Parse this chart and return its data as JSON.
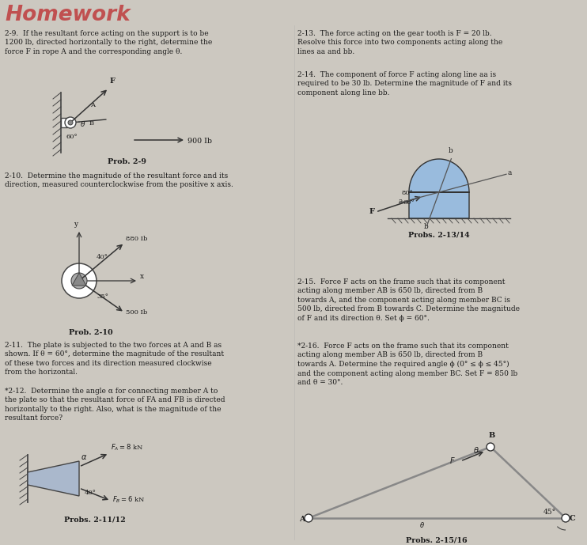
{
  "title": "Homework",
  "bg_color": "#ccc8c0",
  "title_color": "#c05050",
  "text_color": "#1a1a1a",
  "fs_body": 6.5,
  "fs_label": 6.8,
  "fs_title": 19,
  "col_split": 372,
  "p29_text": "2-9.  If the resultant force acting on the support is to be\n1200 lb, directed horizontally to the right, determine the\nforce F in rope A and the corresponding angle θ.",
  "p210_text": "2-10.  Determine the magnitude of the resultant force and its\ndirection, measured counterclockwise from the positive x axis.",
  "p211_text": "2-11.  The plate is subjected to the two forces at A and B as\nshown. If θ = 60°, determine the magnitude of the resultant\nof these two forces and its direction measured clockwise\nfrom the horizontal.",
  "p212_text": "*2-12.  Determine the angle α for connecting member A to\nthe plate so that the resultant force of FA and FB is directed\nhorizontally to the right. Also, what is the magnitude of the\nresultant force?",
  "p213_text": "2-13.  The force acting on the gear tooth is F = 20 lb.\nResolve this force into two components acting along the\nlines aa and bb.",
  "p214_text": "2-14.  The component of force F acting along line aa is\nrequired to be 30 lb. Determine the magnitude of F and its\ncomponent along line bb.",
  "p215_text": "2-15.  Force F acts on the frame such that its component\nacting along member AB is 650 lb, directed from B\ntowards A, and the component acting along member BC is\n500 lb, directed from B towards C. Determine the magnitude\nof F and its direction θ. Set ϕ = 60°.",
  "p216_text": "*2-16.  Force F acts on the frame such that its component\nacting along member AB is 650 lb, directed from B\ntowards A. Determine the required angle ϕ (0° ≤ ϕ ≤ 45°)\nand the component acting along member BC. Set F = 850 lb\nand θ = 30°.",
  "prob29_lbl": "Prob. 2-9",
  "prob210_lbl": "Prob. 2-10",
  "prob2_1112_lbl": "Probs. 2-11/12",
  "prob2_1314_lbl": "Probs. 2-13/14",
  "prob2_1516_lbl": "Probs. 2-15/16",
  "gear_color": "#99bbdd",
  "plate_color": "#aab8cc",
  "frame_color": "#888888"
}
